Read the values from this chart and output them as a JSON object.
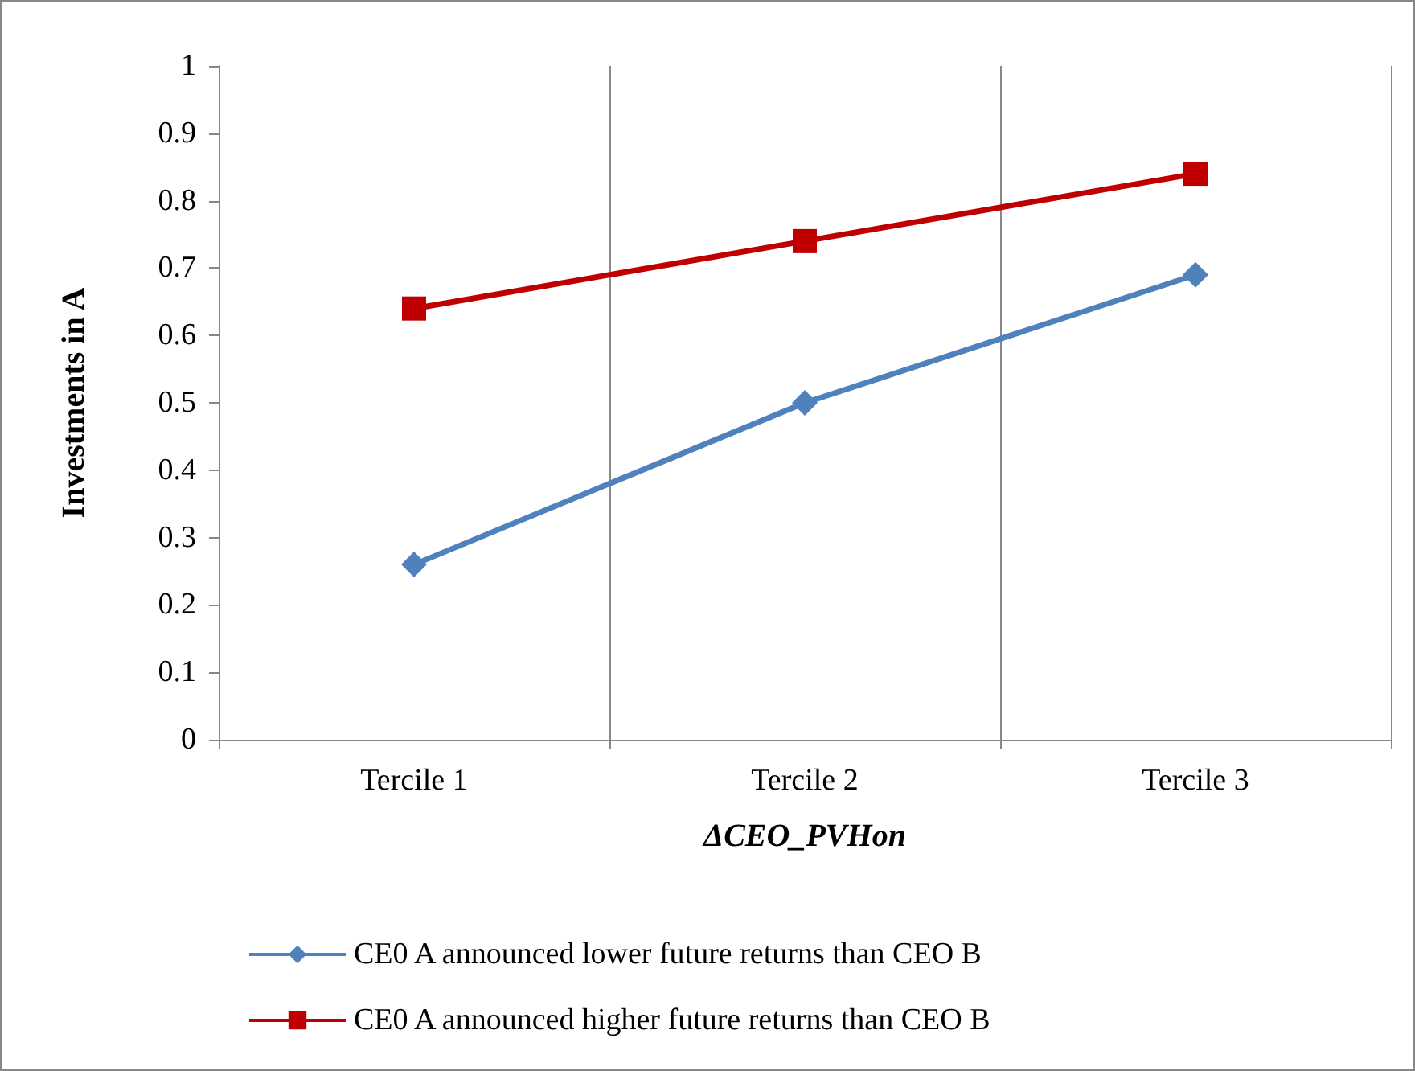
{
  "chart_data": {
    "type": "line",
    "xlabel": "ΔCEO_PVHon",
    "ylabel": "Investments in A",
    "categories": [
      "Tercile 1",
      "Tercile 2",
      "Tercile 3"
    ],
    "series": [
      {
        "name": "CE0 A announced lower future returns than CEO B",
        "color": "#4f81bd",
        "marker": "diamond",
        "values": [
          0.26,
          0.5,
          0.69
        ]
      },
      {
        "name": "CE0 A announced higher future returns than CEO B",
        "color": "#c00000",
        "marker": "square",
        "values": [
          0.64,
          0.74,
          0.84
        ]
      }
    ],
    "ylim": [
      0,
      1
    ],
    "yticks": [
      0,
      0.1,
      0.2,
      0.3,
      0.4,
      0.5,
      0.6,
      0.7,
      0.8,
      0.9,
      1
    ],
    "grid": "x",
    "legend": "bottom"
  }
}
